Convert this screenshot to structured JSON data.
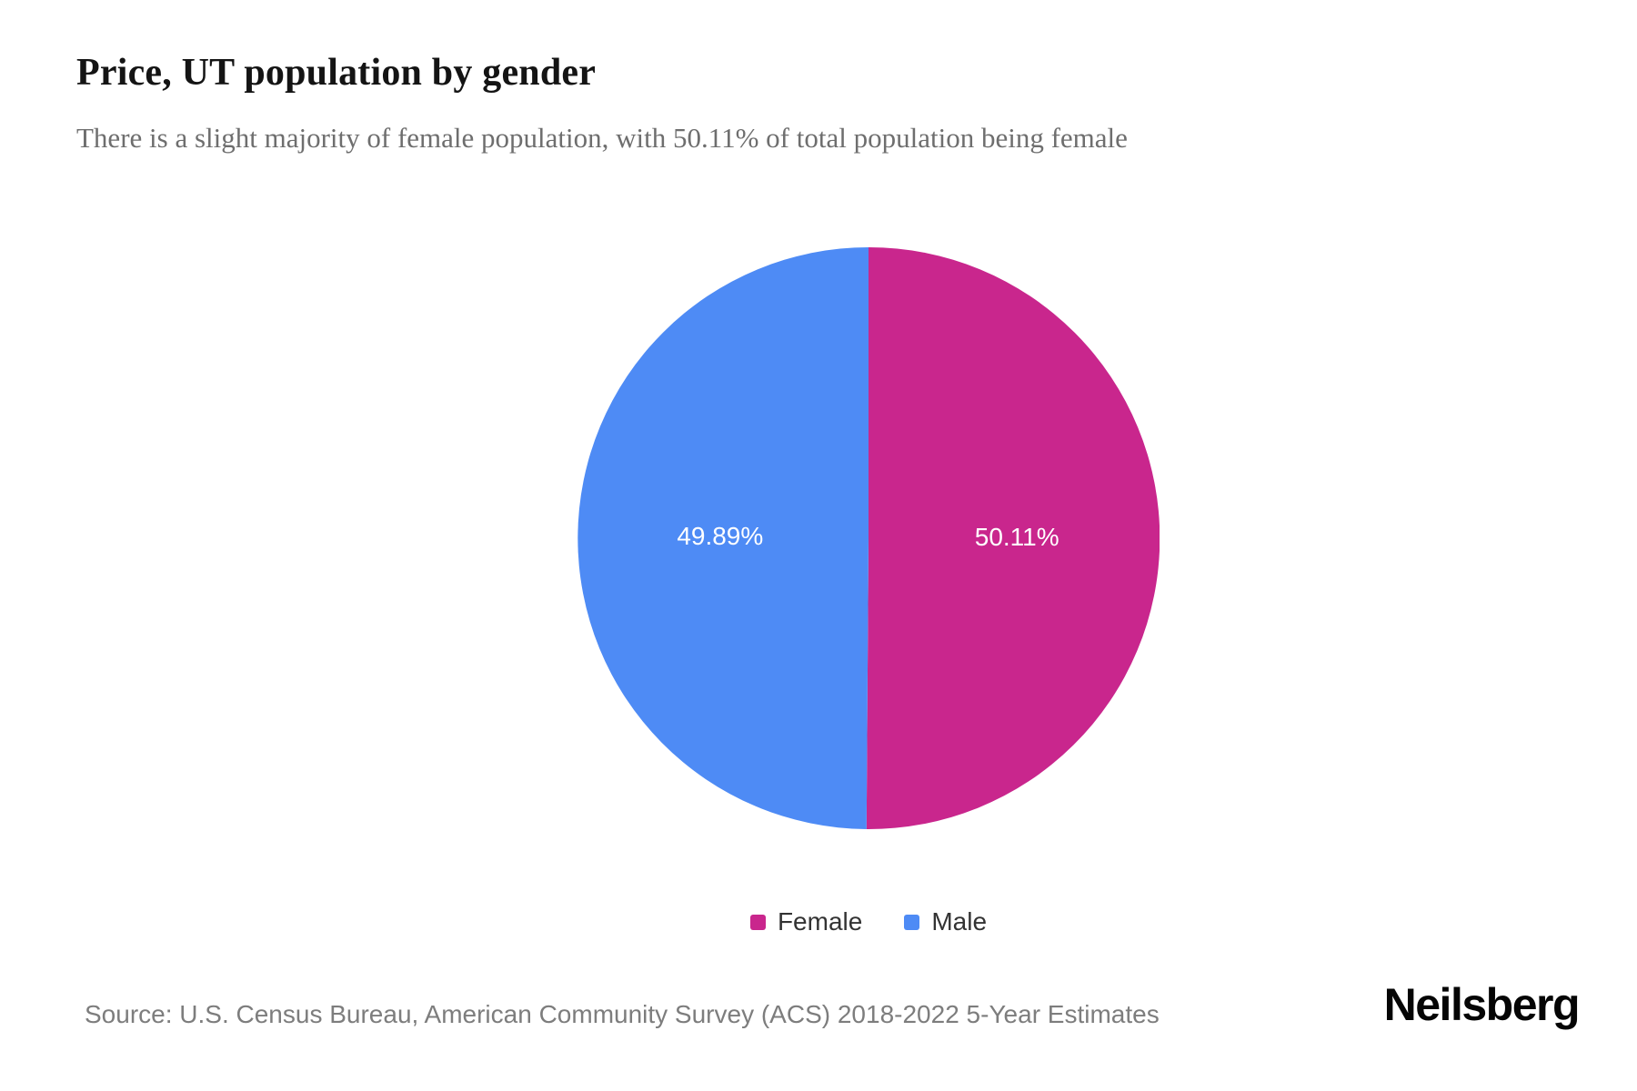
{
  "page": {
    "title": "Price, UT population by gender",
    "subtitle": "There is a slight majority of female population, with 50.11% of total population being female",
    "source": "Source: U.S. Census Bureau, American Community Survey (ACS) 2018-2022 5-Year Estimates",
    "brand": "Neilsberg"
  },
  "chart_data": {
    "type": "pie",
    "title": "Price, UT population by gender",
    "legend_position": "bottom",
    "start_angle_deg": -90,
    "direction": "clockwise",
    "label_color": "#ffffff",
    "label_radius_ratio": 0.51,
    "slices": [
      {
        "label": "Female",
        "value": 50.11,
        "display": "50.11%",
        "color": "#c9268d"
      },
      {
        "label": "Male",
        "value": 49.89,
        "display": "49.89%",
        "color": "#4e8bf5"
      }
    ]
  }
}
